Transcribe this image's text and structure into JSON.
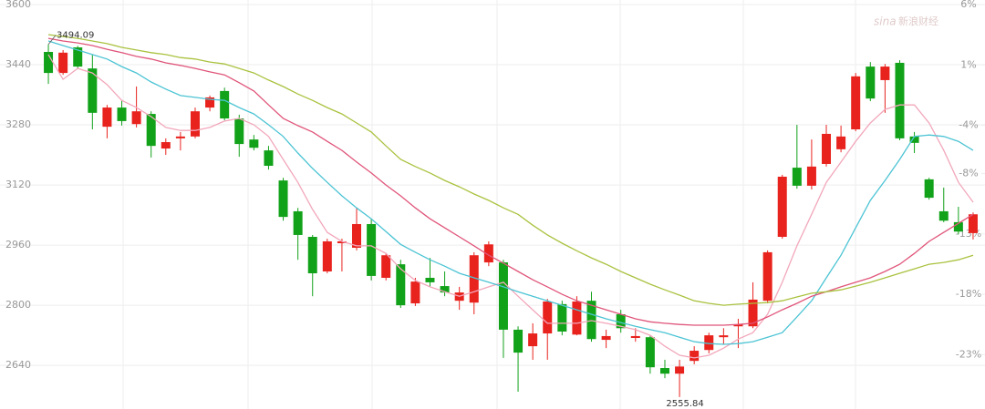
{
  "chart_data": {
    "type": "candlestick",
    "watermark_logo": "sina",
    "watermark": "新浪财经",
    "open": [
      3474,
      3418,
      3486,
      3430,
      3275,
      3326,
      3282,
      3309,
      3217,
      3244,
      3249,
      3326,
      3370,
      3297,
      3241,
      3212,
      3132,
      3050,
      2982,
      2890,
      2965,
      2953,
      3016,
      2873,
      2909,
      2805,
      2873,
      2851,
      2812,
      2807,
      2914,
      2914,
      2735,
      2691,
      2725,
      2803,
      2722,
      2812,
      2708,
      2776,
      2713,
      2715,
      2633,
      2618,
      2652,
      2681,
      2715,
      2744,
      2744,
      2812,
      2982,
      3166,
      3118,
      3176,
      3215,
      3268,
      3435,
      3399,
      3445,
      3249,
      3135,
      3050,
      3021,
      2992
    ],
    "high": [
      3494.09,
      3479,
      3490,
      3467,
      3333,
      3345,
      3382,
      3316,
      3244,
      3261,
      3326,
      3358,
      3379,
      3307,
      3253,
      3224,
      3139,
      3059,
      2987,
      2977,
      2977,
      3059,
      3030,
      2938,
      2921,
      2873,
      2926,
      2890,
      2849,
      2941,
      2970,
      2921,
      2744,
      2752,
      2817,
      2812,
      2824,
      2836,
      2735,
      2788,
      2739,
      2720,
      2655,
      2655,
      2691,
      2727,
      2739,
      2764,
      2861,
      2946,
      3147,
      3280,
      3241,
      3280,
      3278,
      3418,
      3447,
      3442,
      3452,
      3261,
      3139,
      3113,
      3062,
      3047
    ],
    "low": [
      3389,
      3413,
      3430,
      3268,
      3244,
      3278,
      3273,
      3193,
      3200,
      3212,
      3244,
      3316,
      3292,
      3195,
      3212,
      3161,
      3025,
      2921,
      2824,
      2885,
      2890,
      2946,
      2866,
      2866,
      2793,
      2798,
      2849,
      2824,
      2788,
      2776,
      2904,
      2660,
      2570,
      2655,
      2655,
      2720,
      2720,
      2703,
      2686,
      2727,
      2703,
      2618,
      2606,
      2555.84,
      2643,
      2672,
      2696,
      2686,
      2739,
      2805,
      2977,
      3110,
      3108,
      3169,
      3207,
      3263,
      3343,
      3312,
      3239,
      3205,
      3081,
      3021,
      2989,
      2975
    ],
    "close": [
      3418,
      3472,
      3435,
      3312,
      3326,
      3290,
      3316,
      3224,
      3234,
      3249,
      3316,
      3353,
      3297,
      3229,
      3219,
      3171,
      3035,
      2987,
      2885,
      2970,
      2970,
      3016,
      2878,
      2933,
      2800,
      2863,
      2861,
      2834,
      2834,
      2933,
      2962,
      2735,
      2674,
      2725,
      2810,
      2730,
      2810,
      2710,
      2718,
      2739,
      2718,
      2635,
      2618,
      2637,
      2679,
      2720,
      2720,
      2749,
      2815,
      2941,
      3142,
      3118,
      3169,
      3256,
      3249,
      3409,
      3350,
      3435,
      3244,
      3232,
      3086,
      3025,
      2996,
      3042
    ],
    "up_color": "#e8221d",
    "down_color": "#12a21a",
    "lines": [
      {
        "color": "#f2a7bb",
        "values": [
          3467,
          3401,
          3430,
          3418,
          3387,
          3345,
          3326,
          3302,
          3273,
          3265,
          3265,
          3273,
          3290,
          3297,
          3280,
          3249,
          3188,
          3127,
          3055,
          2994,
          2970,
          2958,
          2958,
          2938,
          2897,
          2866,
          2849,
          2836,
          2824,
          2836,
          2849,
          2861,
          2824,
          2788,
          2752,
          2752,
          2752,
          2759,
          2752,
          2744,
          2735,
          2720,
          2691,
          2667,
          2660,
          2667,
          2686,
          2710,
          2727,
          2776,
          2861,
          2958,
          3042,
          3127,
          3181,
          3236,
          3285,
          3321,
          3333,
          3333,
          3285,
          3212,
          3127,
          3074
        ]
      },
      {
        "color": "#4cc4d4",
        "values": [
          3503,
          3491,
          3479,
          3467,
          3455,
          3435,
          3418,
          3394,
          3375,
          3358,
          3353,
          3348,
          3345,
          3326,
          3309,
          3280,
          3249,
          3205,
          3164,
          3127,
          3091,
          3059,
          3030,
          2996,
          2962,
          2941,
          2921,
          2904,
          2885,
          2873,
          2861,
          2849,
          2836,
          2824,
          2812,
          2800,
          2788,
          2776,
          2764,
          2754,
          2744,
          2735,
          2727,
          2715,
          2703,
          2698,
          2696,
          2698,
          2703,
          2715,
          2727,
          2769,
          2812,
          2873,
          2933,
          3006,
          3079,
          3132,
          3188,
          3249,
          3253,
          3249,
          3236,
          3212
        ]
      },
      {
        "color": "#e0557a",
        "values": [
          3510,
          3503,
          3498,
          3491,
          3481,
          3472,
          3462,
          3455,
          3445,
          3438,
          3430,
          3421,
          3413,
          3392,
          3370,
          3333,
          3297,
          3278,
          3261,
          3236,
          3212,
          3181,
          3152,
          3120,
          3091,
          3059,
          3030,
          3006,
          2982,
          2958,
          2933,
          2912,
          2890,
          2868,
          2849,
          2829,
          2812,
          2800,
          2788,
          2776,
          2764,
          2756,
          2752,
          2749,
          2747,
          2747,
          2747,
          2749,
          2752,
          2769,
          2788,
          2805,
          2824,
          2836,
          2849,
          2861,
          2873,
          2890,
          2909,
          2938,
          2970,
          2994,
          3018,
          3042
        ]
      },
      {
        "color": "#a9c23f",
        "values": [
          3520,
          3515,
          3510,
          3503,
          3496,
          3486,
          3479,
          3472,
          3467,
          3459,
          3455,
          3447,
          3442,
          3430,
          3418,
          3399,
          3382,
          3362,
          3345,
          3326,
          3309,
          3285,
          3261,
          3224,
          3188,
          3169,
          3152,
          3132,
          3115,
          3096,
          3079,
          3059,
          3042,
          3013,
          2987,
          2965,
          2945,
          2926,
          2909,
          2890,
          2873,
          2856,
          2841,
          2827,
          2812,
          2805,
          2800,
          2803,
          2805,
          2807,
          2812,
          2822,
          2832,
          2836,
          2841,
          2851,
          2861,
          2873,
          2885,
          2897,
          2909,
          2914,
          2921,
          2933
        ]
      }
    ],
    "ylim": [
      2524,
      3600
    ],
    "yticks": [
      2640,
      2800,
      2960,
      3120,
      3280,
      3440,
      3600
    ],
    "y2lim": [
      -27.5,
      6
    ],
    "y2ticks": [
      {
        "value": -23,
        "label": "-23%"
      },
      {
        "value": -18,
        "label": "-18%"
      },
      {
        "value": -13,
        "label": "-13%"
      },
      {
        "value": -8,
        "label": "-8%"
      },
      {
        "value": -4,
        "label": "-4%"
      },
      {
        "value": 1,
        "label": "1%"
      },
      {
        "value": 6,
        "label": "6%"
      }
    ],
    "grid": true
  }
}
